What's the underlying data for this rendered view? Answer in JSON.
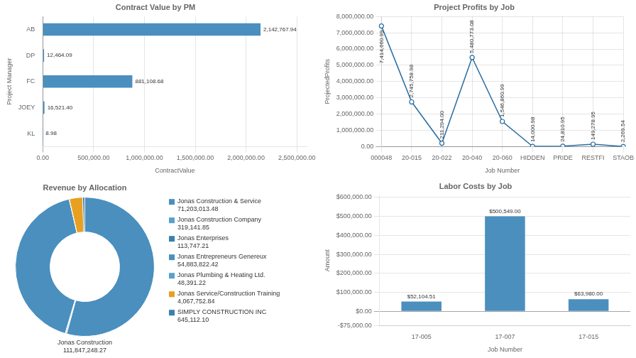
{
  "chart_data": [
    {
      "type": "bar",
      "orientation": "horizontal",
      "title": "Contract Value by PM",
      "xlabel": "ContractValue",
      "ylabel": "Project Manager",
      "categories": [
        "AB",
        "DP",
        "FC",
        "JOEY",
        "KL"
      ],
      "values": [
        2142767.94,
        12464.09,
        881108.68,
        16521.4,
        8.98
      ],
      "value_labels": [
        "2,142,767.94",
        "12,464.09",
        "881,108.68",
        "16,521.40",
        "8.98"
      ],
      "data_labels": true,
      "color": "#4a8fbe",
      "xlim": [
        0,
        2600000
      ],
      "xticks": [
        {
          "value": 0,
          "label": "0.00"
        },
        {
          "value": 500000,
          "label": "500,000.00"
        },
        {
          "value": 1000000,
          "label": "1,000,000.00"
        },
        {
          "value": 1500000,
          "label": "1,500,000.00"
        },
        {
          "value": 2000000,
          "label": "2,000,000.00"
        },
        {
          "value": 2500000,
          "label": "2,500,000.00"
        }
      ],
      "grid": "x"
    },
    {
      "type": "line",
      "title": "Project Profits by Job",
      "xlabel": "Job Number",
      "ylabel": "ProjectedProfits",
      "categories": [
        "000048",
        "20-015",
        "20-022",
        "20-040",
        "20-060",
        "HIDDEN",
        "PRIDE",
        "RESTFI",
        "STAOB"
      ],
      "values": [
        7414660.99,
        2745758.98,
        211294.0,
        5480773.08,
        1546860.99,
        14000.98,
        24810.95,
        149278.95,
        2269.54
      ],
      "value_labels": [
        "7,414,660.99",
        "2,745,758.98",
        "211,294.00",
        "5,480,773.08",
        "1,546,860.99",
        "14,000.98",
        "24,810.95",
        "149,278.95",
        "2,269.54"
      ],
      "data_labels": true,
      "color": "#2a6ea0",
      "marker": "circle",
      "ylim": [
        0,
        8000000
      ],
      "yticks": [
        {
          "value": 0,
          "label": "0.00"
        },
        {
          "value": 1000000,
          "label": "1,000,000.00"
        },
        {
          "value": 2000000,
          "label": "2,000,000.00"
        },
        {
          "value": 3000000,
          "label": "3,000,000.00"
        },
        {
          "value": 4000000,
          "label": "4,000,000.00"
        },
        {
          "value": 5000000,
          "label": "5,000,000.00"
        },
        {
          "value": 6000000,
          "label": "6,000,000.00"
        },
        {
          "value": 7000000,
          "label": "7,000,000.00"
        },
        {
          "value": 8000000,
          "label": "8,000,000.00"
        }
      ],
      "grid": true
    },
    {
      "type": "donut",
      "title": "Revenue by Allocation",
      "categories": [
        "Jonas Construction & Service",
        "Jonas Construction Company",
        "Jonas Enterprises",
        "Jonas Entrepreneurs Genereux",
        "Jonas Plumbing & Heating Ltd.",
        "Jonas Service/Construction Training",
        "SIMPLY CONSTRUCTION INC"
      ],
      "values": [
        71203013.48,
        319141.85,
        113747.21,
        54883822.42,
        48391.22,
        4067752.84,
        645112.1
      ],
      "value_labels": [
        "71,203,013.48",
        "319,141.85",
        "113,747.21",
        "54,883,822.42",
        "48,391.22",
        "4,067,752.84",
        "645,112.10"
      ],
      "data_labels": true,
      "colors": [
        "#4a8fbe",
        "#5aa0cc",
        "#3a80b0",
        "#4a8fbe",
        "#5aa0cc",
        "#e8a020",
        "#3a80b0"
      ],
      "annotations": [
        "Jonas Construction\n111,847,248.27"
      ]
    },
    {
      "type": "bar",
      "title": "Labor Costs by Job",
      "xlabel": "Job Number",
      "ylabel": "Amount",
      "categories": [
        "17-005",
        "17-007",
        "17-015"
      ],
      "values": [
        52104.51,
        500549.0,
        63980.0
      ],
      "value_labels": [
        "$52,104.51",
        "$500,549.00",
        "$63,980.00"
      ],
      "data_labels": true,
      "color": "#4a8fbe",
      "ylim": [
        -75000,
        610000
      ],
      "yticks": [
        {
          "value": -75000,
          "label": "-$75,000.00"
        },
        {
          "value": 0,
          "label": "$0.00"
        },
        {
          "value": 100000,
          "label": "$100,000.00"
        },
        {
          "value": 200000,
          "label": "$200,000.00"
        },
        {
          "value": 300000,
          "label": "$300,000.00"
        },
        {
          "value": 400000,
          "label": "$400,000.00"
        },
        {
          "value": 500000,
          "label": "$500,000.00"
        },
        {
          "value": 600000,
          "label": "$600,000.00"
        }
      ],
      "grid": "y"
    }
  ]
}
